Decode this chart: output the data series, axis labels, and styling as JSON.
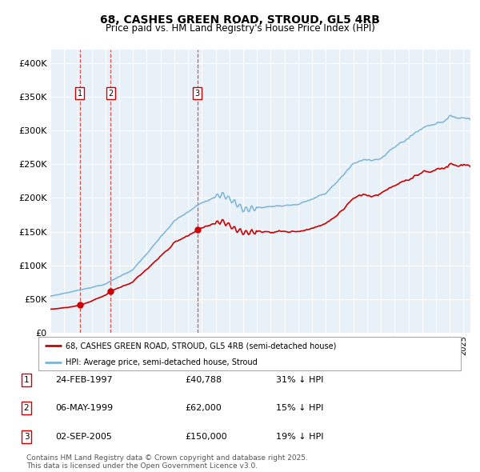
{
  "title": "68, CASHES GREEN ROAD, STROUD, GL5 4RB",
  "subtitle": "Price paid vs. HM Land Registry's House Price Index (HPI)",
  "plot_bg_color": "#e8f0f8",
  "hpi_color": "#7ab4d8",
  "price_color": "#cc0000",
  "ylim": [
    0,
    420000
  ],
  "yticks": [
    0,
    50000,
    100000,
    150000,
    200000,
    250000,
    300000,
    350000,
    400000
  ],
  "ytick_labels": [
    "£0",
    "£50K",
    "£100K",
    "£150K",
    "£200K",
    "£250K",
    "£300K",
    "£350K",
    "£400K"
  ],
  "sale1_year": 1997.14,
  "sale1_price": 40788,
  "sale2_year": 1999.37,
  "sale2_price": 62000,
  "sale3_year": 2005.67,
  "sale3_price": 150000,
  "xmin": 1995.0,
  "xmax": 2025.5,
  "legend_line1": "68, CASHES GREEN ROAD, STROUD, GL5 4RB (semi-detached house)",
  "legend_line2": "HPI: Average price, semi-detached house, Stroud",
  "table_entries": [
    {
      "num": "1",
      "date": "24-FEB-1997",
      "price": "£40,788",
      "hpi": "31% ↓ HPI"
    },
    {
      "num": "2",
      "date": "06-MAY-1999",
      "price": "£62,000",
      "hpi": "15% ↓ HPI"
    },
    {
      "num": "3",
      "date": "02-SEP-2005",
      "price": "£150,000",
      "hpi": "19% ↓ HPI"
    }
  ],
  "footer": "Contains HM Land Registry data © Crown copyright and database right 2025.\nThis data is licensed under the Open Government Licence v3.0."
}
